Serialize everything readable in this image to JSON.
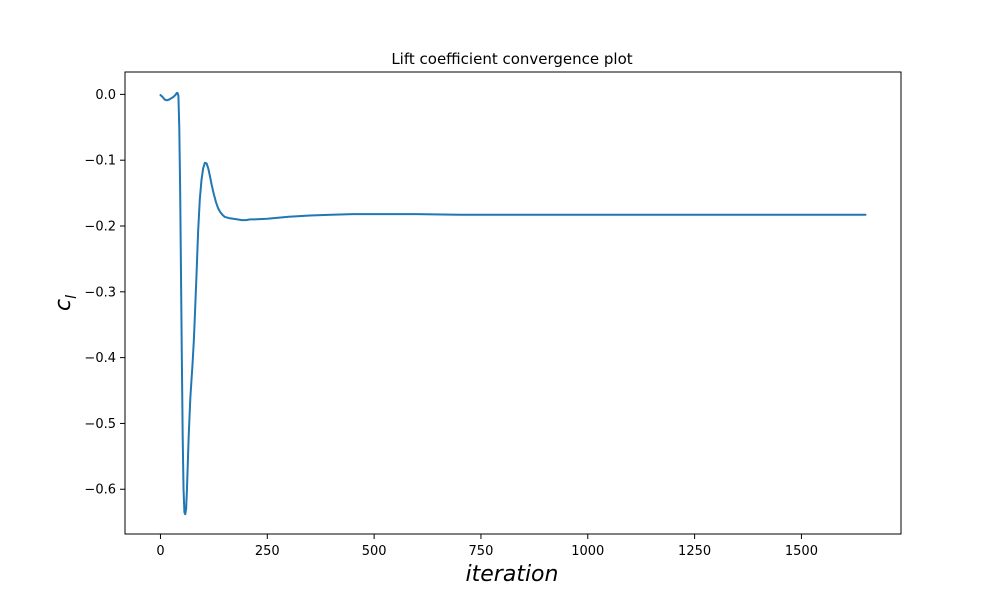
{
  "chart_data": {
    "type": "line",
    "title": "Lift coefficient convergence plot",
    "xlabel": "iteration",
    "ylabel_main": "c",
    "ylabel_sub": "l",
    "xlim": [
      -83,
      1733
    ],
    "ylim": [
      -0.668,
      0.034
    ],
    "x_ticks": [
      0,
      250,
      500,
      750,
      1000,
      1250,
      1500
    ],
    "x_tick_labels": [
      "0",
      "250",
      "500",
      "750",
      "1000",
      "1250",
      "1500"
    ],
    "y_ticks": [
      0.0,
      -0.1,
      -0.2,
      -0.3,
      -0.4,
      -0.5,
      -0.6
    ],
    "y_tick_labels": [
      "0.0",
      "−0.1",
      "−0.2",
      "−0.3",
      "−0.4",
      "−0.5",
      "−0.6"
    ],
    "grid": false,
    "series": [
      {
        "color": "#1f77b4",
        "x": [
          0,
          5,
          10,
          15,
          20,
          25,
          30,
          35,
          38,
          40,
          42,
          44,
          46,
          48,
          50,
          52,
          54,
          56,
          58,
          60,
          62,
          64,
          66,
          68,
          70,
          72,
          75,
          78,
          80,
          84,
          88,
          92,
          96,
          100,
          104,
          108,
          112,
          116,
          120,
          125,
          130,
          135,
          140,
          145,
          150,
          160,
          170,
          180,
          190,
          200,
          210,
          220,
          250,
          300,
          350,
          400,
          450,
          500,
          600,
          700,
          800,
          900,
          1000,
          1100,
          1200,
          1300,
          1400,
          1500,
          1600,
          1650
        ],
        "y": [
          -0.001,
          -0.004,
          -0.008,
          -0.009,
          -0.008,
          -0.006,
          -0.004,
          -0.001,
          0.002,
          0.002,
          -0.002,
          -0.05,
          -0.14,
          -0.27,
          -0.4,
          -0.52,
          -0.6,
          -0.635,
          -0.638,
          -0.63,
          -0.6,
          -0.56,
          -0.52,
          -0.49,
          -0.46,
          -0.44,
          -0.41,
          -0.375,
          -0.345,
          -0.28,
          -0.21,
          -0.16,
          -0.13,
          -0.112,
          -0.104,
          -0.105,
          -0.113,
          -0.125,
          -0.138,
          -0.152,
          -0.164,
          -0.173,
          -0.179,
          -0.183,
          -0.186,
          -0.188,
          -0.189,
          -0.19,
          -0.191,
          -0.191,
          -0.19,
          -0.19,
          -0.189,
          -0.186,
          -0.184,
          -0.183,
          -0.182,
          -0.182,
          -0.182,
          -0.183,
          -0.183,
          -0.183,
          -0.183,
          -0.183,
          -0.183,
          -0.183,
          -0.183,
          -0.183,
          -0.183,
          -0.183
        ]
      }
    ]
  }
}
